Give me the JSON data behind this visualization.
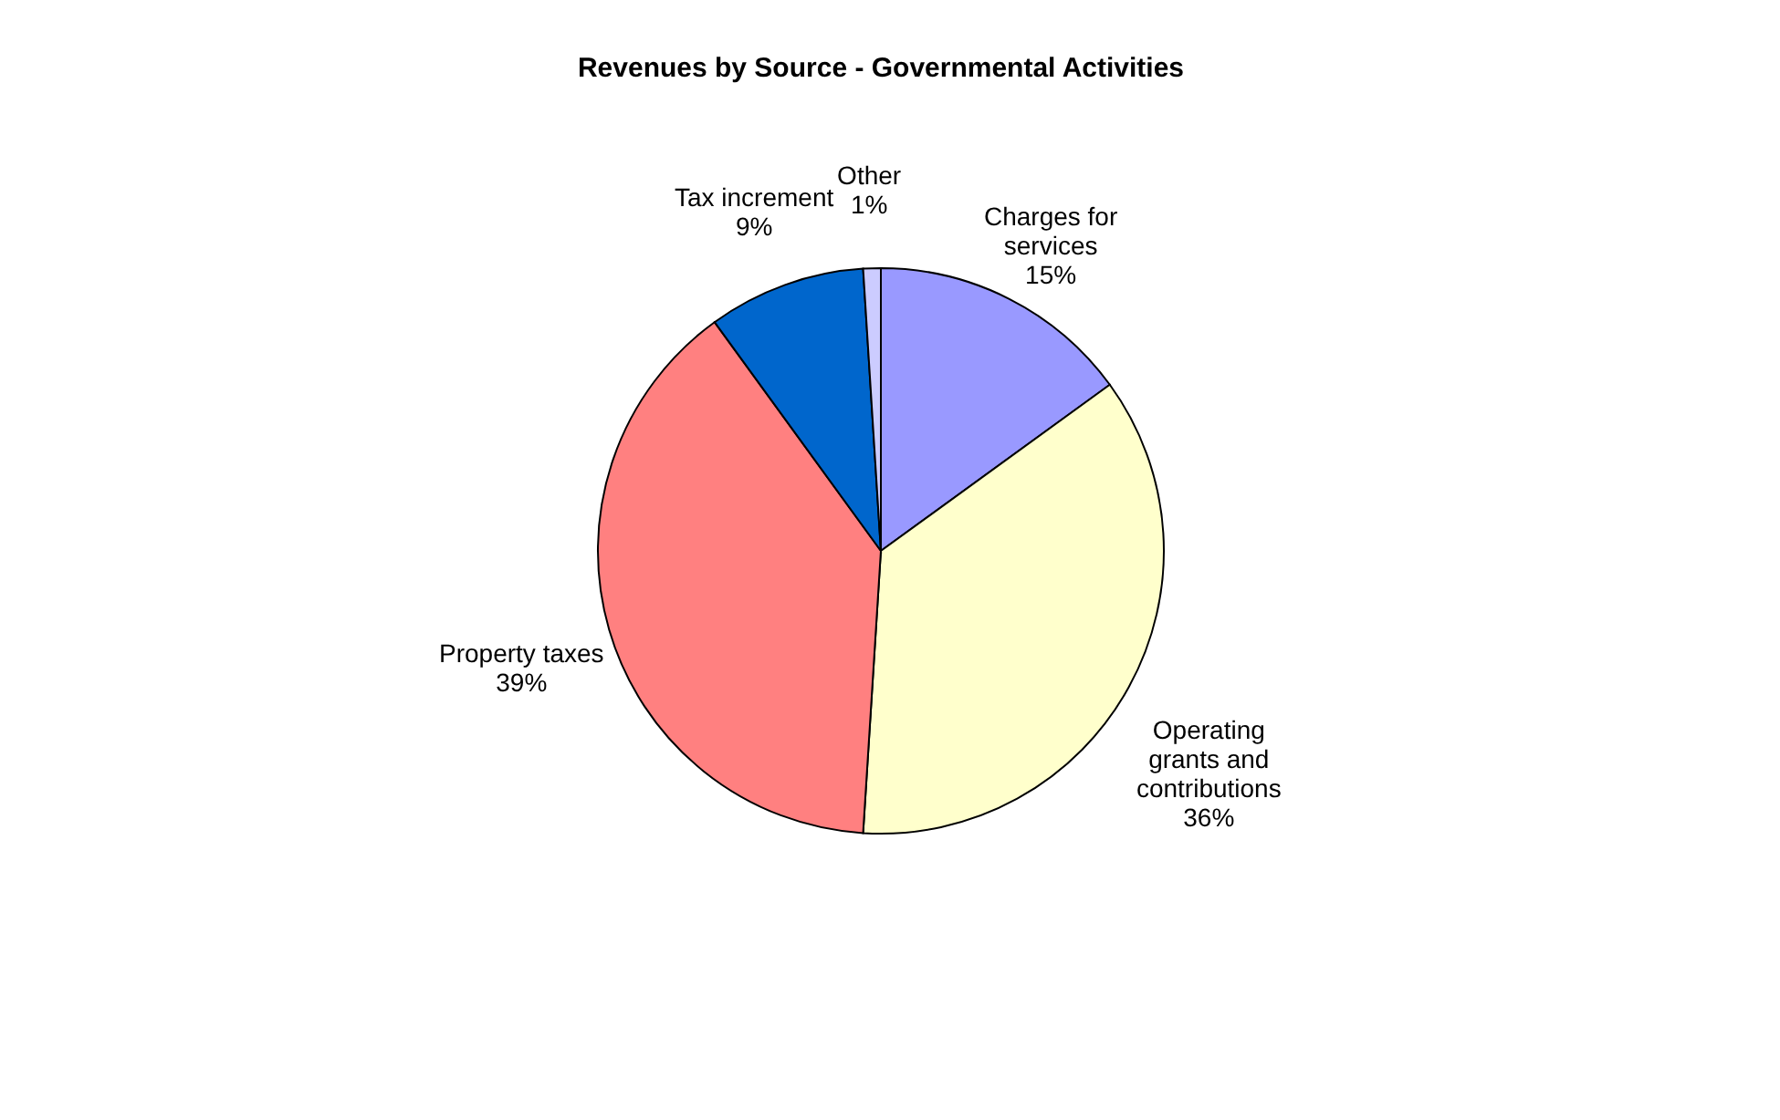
{
  "chart_data": {
    "type": "pie",
    "title": "Revenues by Source - Governmental Activities",
    "categories": [
      "Charges for services",
      "Operating grants and contributions",
      "Property taxes",
      "Tax increment",
      "Other"
    ],
    "values": [
      15,
      36,
      39,
      9,
      1
    ],
    "value_labels": [
      "15%",
      "36%",
      "39%",
      "9%",
      "1%"
    ],
    "colors": [
      "#9999ff",
      "#ffffcc",
      "#ff8080",
      "#0066cc",
      "#ccccff"
    ],
    "legend": false
  }
}
